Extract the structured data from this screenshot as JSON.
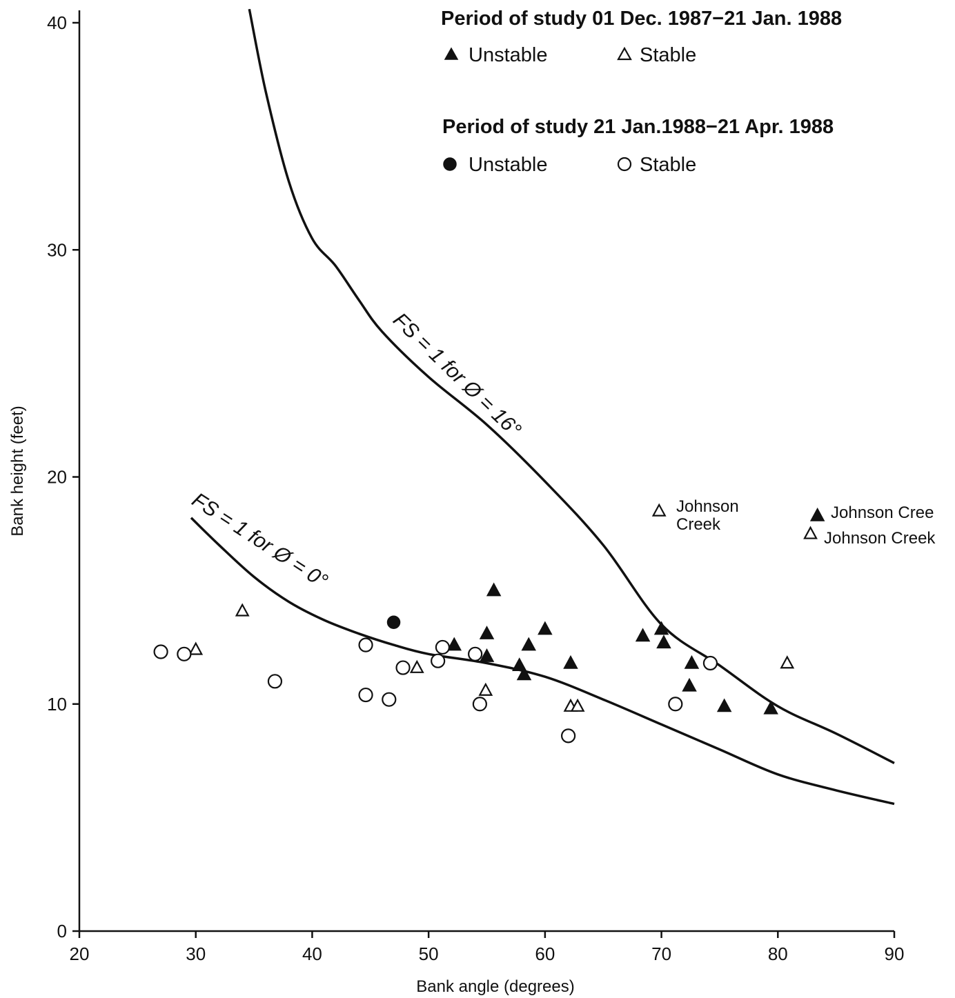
{
  "chart_data": {
    "type": "scatter",
    "xlabel": "Bank angle (degrees)",
    "ylabel": "Bank height (feet)",
    "xlim": [
      20,
      90
    ],
    "ylim": [
      0,
      40
    ],
    "x_ticks": [
      "20",
      "30",
      "40",
      "50",
      "60",
      "70",
      "80",
      "90"
    ],
    "y_ticks": [
      "0",
      "10",
      "20",
      "30",
      "40"
    ],
    "grid": false,
    "legend_placement": "top-right",
    "legend": [
      {
        "title": "Period of study 01 Dec. 1987−21 Jan. 1988",
        "entries": [
          {
            "label": "Unstable",
            "marker": "filled-triangle"
          },
          {
            "label": "Stable",
            "marker": "open-triangle"
          }
        ]
      },
      {
        "title": "Period of study 21 Jan.1988−21 Apr. 1988",
        "entries": [
          {
            "label": "Unstable",
            "marker": "filled-circle"
          },
          {
            "label": "Stable",
            "marker": "open-circle"
          }
        ]
      }
    ],
    "series": [
      {
        "marker": "filled-triangle",
        "points": [
          [
            52.2,
            12.6
          ],
          [
            55.0,
            13.1
          ],
          [
            55.0,
            12.1
          ],
          [
            55.6,
            15.0
          ],
          [
            57.8,
            11.7
          ],
          [
            58.2,
            11.3
          ],
          [
            58.6,
            12.6
          ],
          [
            60.0,
            13.3
          ],
          [
            62.2,
            11.8
          ],
          [
            68.4,
            13.0
          ],
          [
            70.0,
            13.3
          ],
          [
            70.2,
            12.7
          ],
          [
            72.4,
            10.8
          ],
          [
            72.6,
            11.8
          ],
          [
            75.4,
            9.9
          ],
          [
            79.4,
            9.8
          ],
          [
            83.4,
            18.3
          ]
        ]
      },
      {
        "marker": "open-triangle",
        "points": [
          [
            30.0,
            12.4
          ],
          [
            34.0,
            14.1
          ],
          [
            49.0,
            11.6
          ],
          [
            54.9,
            10.6
          ],
          [
            62.2,
            9.9
          ],
          [
            62.8,
            9.9
          ],
          [
            69.8,
            18.5
          ],
          [
            80.8,
            11.8
          ],
          [
            82.8,
            17.5
          ]
        ]
      },
      {
        "marker": "filled-circle",
        "points": [
          [
            47.0,
            13.6
          ]
        ]
      },
      {
        "marker": "open-circle",
        "points": [
          [
            27.0,
            12.3
          ],
          [
            29.0,
            12.2
          ],
          [
            36.8,
            11.0
          ],
          [
            44.6,
            12.6
          ],
          [
            44.6,
            10.4
          ],
          [
            46.6,
            10.2
          ],
          [
            47.8,
            11.6
          ],
          [
            50.8,
            11.9
          ],
          [
            51.2,
            12.5
          ],
          [
            54.0,
            12.2
          ],
          [
            54.4,
            10.0
          ],
          [
            62.0,
            8.6
          ],
          [
            71.2,
            10.0
          ],
          [
            74.2,
            11.8
          ]
        ]
      }
    ],
    "curves": [
      {
        "label": "FS = 1 for Ø = 16°",
        "points": [
          [
            34.6,
            40.6
          ],
          [
            36,
            37
          ],
          [
            38,
            33
          ],
          [
            40,
            30.5
          ],
          [
            42,
            29.3
          ],
          [
            44,
            27.8
          ],
          [
            46,
            26.4
          ],
          [
            50,
            24.4
          ],
          [
            55,
            22.3
          ],
          [
            60,
            19.8
          ],
          [
            65,
            17.0
          ],
          [
            70,
            13.5
          ],
          [
            75,
            11.7
          ],
          [
            80,
            9.9
          ],
          [
            85,
            8.7
          ],
          [
            90,
            7.4
          ]
        ]
      },
      {
        "label": "FS = 1 for Ø = 0°",
        "points": [
          [
            29.6,
            18.2
          ],
          [
            32,
            17.0
          ],
          [
            35,
            15.6
          ],
          [
            38,
            14.5
          ],
          [
            41,
            13.7
          ],
          [
            44,
            13.1
          ],
          [
            47,
            12.6
          ],
          [
            50,
            12.2
          ],
          [
            55,
            11.8
          ],
          [
            60,
            11.2
          ],
          [
            65,
            10.2
          ],
          [
            70,
            9.1
          ],
          [
            75,
            8.0
          ],
          [
            80,
            6.9
          ],
          [
            85,
            6.2
          ],
          [
            90,
            5.6
          ]
        ]
      }
    ],
    "annotations": [
      {
        "lines": [
          "Johnson",
          "Creek"
        ],
        "x": 69.8,
        "y": 18.5
      },
      {
        "lines": [
          "Johnson Cree"
        ],
        "x": 83.4,
        "y": 18.3
      },
      {
        "lines": [
          "Johnson Creek"
        ],
        "x": 82.8,
        "y": 17.5
      }
    ]
  }
}
